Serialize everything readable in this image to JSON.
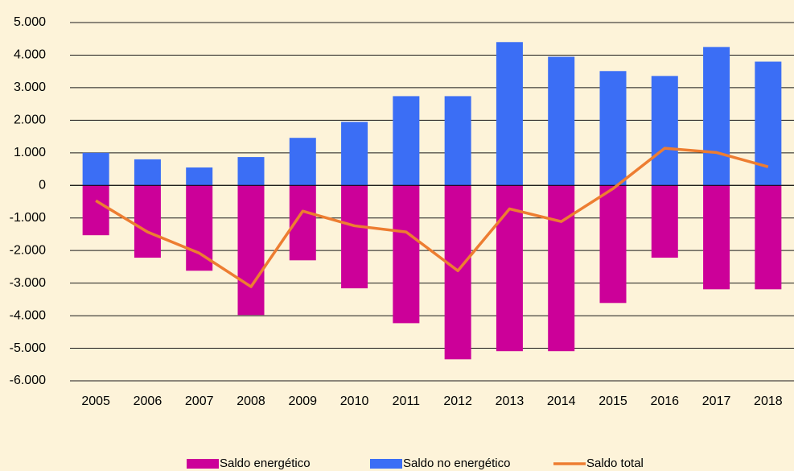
{
  "chart_data": {
    "type": "bar",
    "categories": [
      "2005",
      "2006",
      "2007",
      "2008",
      "2009",
      "2010",
      "2011",
      "2012",
      "2013",
      "2014",
      "2015",
      "2016",
      "2017",
      "2018"
    ],
    "series": [
      {
        "name": "Saldo energético",
        "type": "bar",
        "color": "#cc0099",
        "values": [
          -1530,
          -2220,
          -2620,
          -3980,
          -2300,
          -3160,
          -4230,
          -5340,
          -5090,
          -5090,
          -3610,
          -2220,
          -3190,
          -3190
        ]
      },
      {
        "name": "Saldo no energético",
        "type": "bar",
        "color": "#3b6ef5",
        "values": [
          1000,
          800,
          550,
          870,
          1460,
          1950,
          2740,
          2740,
          4400,
          3950,
          3510,
          3360,
          4250,
          3800
        ]
      },
      {
        "name": "Saldo total",
        "type": "line",
        "color": "#ed7d31",
        "values": [
          -470,
          -1430,
          -2080,
          -3110,
          -790,
          -1240,
          -1430,
          -2620,
          -720,
          -1110,
          -100,
          1140,
          1010,
          570
        ]
      }
    ],
    "ylim": [
      -6000,
      5000
    ],
    "yticks": [
      {
        "value": 5000,
        "label": "5.000"
      },
      {
        "value": 4000,
        "label": "4.000"
      },
      {
        "value": 3000,
        "label": "3.000"
      },
      {
        "value": 2000,
        "label": "2.000"
      },
      {
        "value": 1000,
        "label": "1.000"
      },
      0,
      {
        "value": -1000,
        "label": "-1.000"
      },
      {
        "value": -2000,
        "label": "-2.000"
      },
      {
        "value": -3000,
        "label": "-3.000"
      },
      {
        "value": -4000,
        "label": "-4.000"
      },
      {
        "value": -5000,
        "label": "-5.000"
      },
      {
        "value": -6000,
        "label": "-6.000"
      }
    ],
    "grid": true,
    "legend": "bottom"
  }
}
